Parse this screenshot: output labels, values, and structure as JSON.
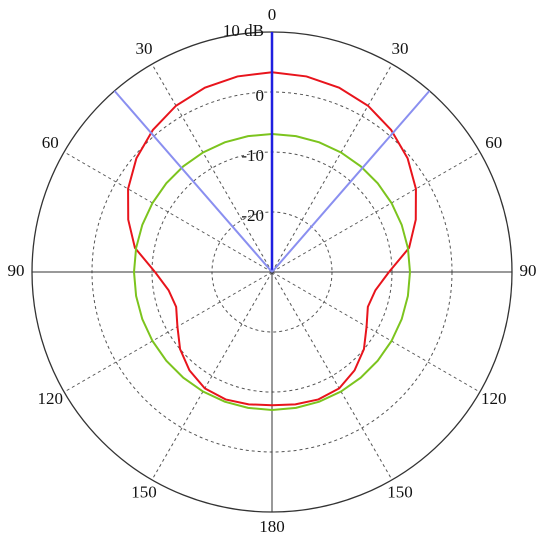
{
  "chart_data": {
    "type": "polar",
    "theta_direction": "clockwise",
    "theta_zero": "top",
    "rlim": [
      -30,
      10
    ],
    "rticks": [
      -20,
      -10,
      0,
      {
        "value": 10,
        "label": "10 dB"
      }
    ],
    "thetaticks": [
      {
        "value": 0,
        "label": "0"
      },
      {
        "value": 30,
        "label": "30"
      },
      {
        "value": 60,
        "label": "60"
      },
      {
        "value": 90,
        "label": "90"
      },
      {
        "value": 120,
        "label": "120"
      },
      {
        "value": 150,
        "label": "150"
      },
      {
        "value": 180,
        "label": "180"
      },
      {
        "value": 210,
        "label": "150"
      },
      {
        "value": 240,
        "label": "120"
      },
      {
        "value": 270,
        "label": "90"
      },
      {
        "value": 300,
        "label": "60"
      },
      {
        "value": 330,
        "label": "30"
      }
    ],
    "theta": [
      0,
      10,
      20,
      30,
      40,
      50,
      60,
      70,
      80,
      90,
      100,
      110,
      120,
      130,
      140,
      150,
      160,
      170,
      180,
      190,
      200,
      210,
      220,
      230,
      240,
      250,
      260,
      270,
      280,
      290,
      300,
      310,
      320,
      330,
      340,
      350
    ],
    "series": [
      {
        "color": "#e8141c",
        "values": [
          3.3,
          3.1,
          2.7,
          2.0,
          0.9,
          -0.5,
          -2.3,
          -4.5,
          -6.8,
          -10.5,
          -12.5,
          -13,
          -11.8,
          -10,
          -8.6,
          -7.6,
          -7.4,
          -7.6,
          -7.8,
          -7.6,
          -7.4,
          -7.6,
          -8.6,
          -10,
          -11.8,
          -13,
          -12.5,
          -10.5,
          -6.8,
          -4.5,
          -2.3,
          -0.5,
          0.9,
          2.0,
          2.7,
          3.1
        ]
      },
      {
        "color": "#7cc41e",
        "values": [
          -7,
          -7,
          -7,
          -7,
          -7,
          -7,
          -7,
          -7,
          -7,
          -7,
          -7,
          -7,
          -7,
          -7,
          -7,
          -7,
          -7,
          -7,
          -7,
          -7,
          -7,
          -7,
          -7,
          -7,
          -7,
          -7,
          -7,
          -7,
          -7,
          -7,
          -7,
          -7,
          -7,
          -7,
          -7,
          -7
        ]
      }
    ],
    "markers": [
      {
        "theta": 0,
        "color": "#1f1fe0"
      },
      {
        "theta": 41,
        "color": "#8a8ff0"
      },
      {
        "theta": 319,
        "color": "#8a8ff0"
      }
    ]
  }
}
